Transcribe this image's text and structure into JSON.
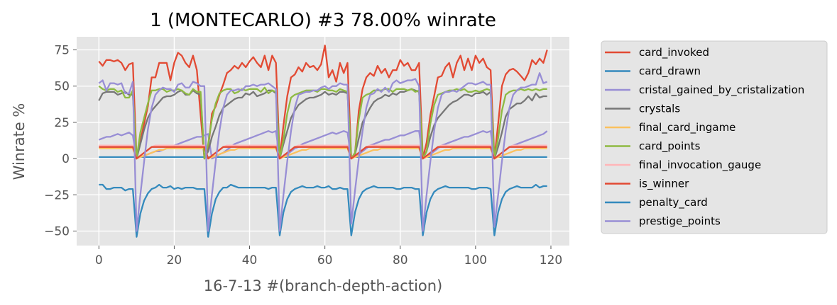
{
  "chart_data": {
    "type": "line",
    "title": "1 (MONTECARLO) #3 78.00% winrate",
    "xlabel": "16-7-13 #(branch-depth-action)",
    "ylabel": "Winrate %",
    "xlim": [
      -5.9,
      124.9
    ],
    "ylim": [
      -60,
      84
    ],
    "xticks": [
      0,
      20,
      40,
      60,
      80,
      100,
      120
    ],
    "yticks": [
      -50,
      -25,
      0,
      25,
      50,
      75
    ],
    "grid": true,
    "legend_position": "outside-right",
    "background": "#E5E5E5",
    "x": {
      "start": 0,
      "end": 119,
      "step": 1
    },
    "series": [
      {
        "name": "card_invoked",
        "color": "#E24A33",
        "values": [
          67,
          64,
          68,
          68,
          67,
          68,
          66,
          61,
          65,
          66,
          0,
          12,
          24,
          36,
          56,
          56,
          66,
          66,
          66,
          54,
          66,
          73,
          71,
          66,
          63,
          71,
          61,
          30,
          0,
          6,
          31,
          36,
          44,
          51,
          59,
          61,
          64,
          62,
          66,
          63,
          67,
          70,
          66,
          63,
          71,
          61,
          71,
          66,
          0,
          23,
          43,
          56,
          58,
          63,
          60,
          66,
          63,
          64,
          61,
          65,
          78,
          56,
          61,
          53,
          66,
          59,
          66,
          0,
          4,
          33,
          48,
          56,
          59,
          57,
          64,
          59,
          62,
          56,
          61,
          61,
          68,
          64,
          66,
          61,
          61,
          66,
          0,
          11,
          30,
          43,
          56,
          57,
          63,
          66,
          56,
          66,
          71,
          61,
          69,
          61,
          71,
          66,
          69,
          63,
          61,
          0,
          24,
          50,
          58,
          61,
          62,
          60,
          57,
          54,
          59,
          68,
          65,
          69,
          66,
          75
        ]
      },
      {
        "name": "card_drawn",
        "color": "#348ABD",
        "values": [
          1,
          1,
          1,
          1,
          1,
          1,
          1,
          1,
          1,
          1,
          1,
          1,
          1,
          1,
          1,
          1,
          1,
          1,
          1,
          1,
          1,
          1,
          1,
          1,
          1,
          1,
          1,
          1,
          1,
          1,
          1,
          1,
          1,
          1,
          1,
          1,
          1,
          1,
          1,
          1,
          1,
          1,
          1,
          1,
          1,
          1,
          1,
          1,
          1,
          1,
          1,
          1,
          1,
          1,
          1,
          1,
          1,
          1,
          1,
          1,
          1,
          1,
          1,
          1,
          1,
          1,
          1,
          1,
          1,
          1,
          1,
          1,
          1,
          1,
          1,
          1,
          1,
          1,
          1,
          1,
          1,
          1,
          1,
          1,
          1,
          1,
          1,
          1,
          1,
          1,
          1,
          1,
          1,
          1,
          1,
          1,
          1,
          1,
          1,
          1,
          1,
          1,
          1,
          1,
          1,
          1,
          1,
          1,
          1,
          1,
          1,
          1,
          1,
          1,
          1,
          1,
          1,
          1,
          1,
          1
        ]
      },
      {
        "name": "cristal_gained_by_cristalization",
        "color": "#988ED5",
        "values": [
          13,
          14,
          15,
          15,
          16,
          17,
          16,
          17,
          18,
          16,
          0,
          1,
          2,
          3,
          4,
          5,
          5,
          6,
          7,
          8,
          9,
          10,
          11,
          12,
          13,
          14,
          15,
          15,
          16,
          17,
          0,
          1,
          3,
          4,
          6,
          8,
          10,
          11,
          12,
          13,
          14,
          15,
          16,
          17,
          18,
          19,
          18,
          19,
          0,
          1,
          3,
          5,
          7,
          8,
          10,
          11,
          12,
          13,
          14,
          15,
          16,
          17,
          18,
          17,
          18,
          19,
          18,
          0,
          1,
          3,
          5,
          7,
          9,
          10,
          11,
          12,
          13,
          13,
          14,
          15,
          16,
          16,
          17,
          18,
          19,
          19,
          0,
          1,
          3,
          5,
          7,
          9,
          10,
          11,
          12,
          13,
          14,
          15,
          15,
          16,
          17,
          18,
          19,
          18,
          19,
          0,
          2,
          4,
          6,
          8,
          9,
          10,
          11,
          12,
          13,
          14,
          15,
          16,
          17,
          19
        ]
      },
      {
        "name": "crystals",
        "color": "#777777",
        "values": [
          40,
          45,
          46,
          46,
          46,
          44,
          45,
          46,
          44,
          44,
          0,
          10,
          20,
          28,
          33,
          36,
          39,
          42,
          43,
          43,
          44,
          46,
          47,
          44,
          44,
          47,
          45,
          44,
          0,
          5,
          15,
          22,
          30,
          35,
          37,
          39,
          41,
          42,
          42,
          45,
          44,
          46,
          43,
          44,
          45,
          47,
          47,
          45,
          0,
          10,
          19,
          28,
          33,
          37,
          39,
          41,
          42,
          42,
          43,
          44,
          46,
          44,
          45,
          44,
          46,
          46,
          45,
          0,
          3,
          14,
          25,
          30,
          35,
          39,
          41,
          42,
          44,
          43,
          45,
          44,
          46,
          46,
          47,
          48,
          47,
          46,
          0,
          5,
          15,
          23,
          28,
          31,
          34,
          37,
          39,
          40,
          42,
          44,
          44,
          43,
          45,
          45,
          46,
          44,
          46,
          0,
          8,
          18,
          29,
          34,
          36,
          38,
          38,
          40,
          43,
          40,
          45,
          42,
          43,
          43
        ]
      },
      {
        "name": "final_card_ingame",
        "color": "#FBC15E",
        "values": [
          7,
          7,
          7,
          7,
          7,
          7,
          7,
          7,
          7,
          7,
          0,
          1,
          2,
          3,
          4,
          5,
          6,
          6,
          7,
          7,
          7,
          7,
          7,
          7,
          7,
          7,
          7,
          7,
          7,
          0,
          1,
          2,
          3,
          4,
          5,
          6,
          6,
          7,
          7,
          7,
          7,
          7,
          7,
          7,
          7,
          7,
          7,
          7,
          0,
          1,
          2,
          3,
          4,
          5,
          6,
          6,
          7,
          7,
          7,
          7,
          7,
          7,
          7,
          7,
          7,
          7,
          7,
          0,
          1,
          2,
          3,
          4,
          5,
          6,
          6,
          7,
          7,
          7,
          7,
          7,
          7,
          7,
          7,
          7,
          7,
          7,
          0,
          1,
          2,
          3,
          4,
          5,
          6,
          6,
          7,
          7,
          7,
          7,
          7,
          7,
          7,
          7,
          7,
          7,
          7,
          0,
          1,
          2,
          3,
          4,
          5,
          6,
          6,
          7,
          7,
          7,
          7,
          7,
          7,
          7
        ]
      },
      {
        "name": "card_points",
        "color": "#8EBA42",
        "values": [
          50,
          48,
          47,
          48,
          48,
          46,
          47,
          42,
          42,
          47,
          0,
          18,
          28,
          38,
          47,
          47,
          48,
          48,
          46,
          47,
          47,
          48,
          47,
          45,
          44,
          48,
          46,
          46,
          0,
          10,
          27,
          38,
          45,
          47,
          48,
          48,
          45,
          46,
          48,
          47,
          48,
          48,
          48,
          46,
          49,
          45,
          47,
          46,
          0,
          13,
          31,
          42,
          44,
          45,
          46,
          47,
          47,
          47,
          46,
          48,
          48,
          47,
          47,
          46,
          48,
          47,
          46,
          0,
          4,
          27,
          42,
          44,
          45,
          47,
          47,
          47,
          48,
          48,
          46,
          48,
          48,
          48,
          47,
          48,
          46,
          47,
          0,
          5,
          24,
          37,
          44,
          45,
          46,
          47,
          47,
          48,
          47,
          48,
          46,
          46,
          47,
          46,
          47,
          48,
          47,
          0,
          14,
          33,
          44,
          46,
          47,
          47,
          48,
          47,
          48,
          47,
          48,
          47,
          48,
          48
        ]
      },
      {
        "name": "final_invocation_gauge",
        "color": "#FFB5B8",
        "values": [
          9,
          9,
          9,
          9,
          9,
          9,
          9,
          9,
          9,
          9,
          0,
          2,
          4,
          6,
          8,
          9,
          9,
          9,
          9,
          9,
          9,
          9,
          9,
          9,
          9,
          9,
          9,
          9,
          9,
          0,
          2,
          4,
          6,
          8,
          9,
          9,
          9,
          9,
          9,
          9,
          9,
          9,
          9,
          9,
          9,
          9,
          9,
          9,
          0,
          2,
          4,
          6,
          8,
          9,
          9,
          9,
          9,
          9,
          9,
          9,
          9,
          9,
          9,
          9,
          9,
          9,
          9,
          0,
          2,
          4,
          6,
          8,
          9,
          9,
          9,
          9,
          9,
          9,
          9,
          9,
          9,
          9,
          9,
          9,
          9,
          9,
          0,
          2,
          4,
          6,
          8,
          9,
          9,
          9,
          9,
          9,
          9,
          9,
          9,
          9,
          9,
          9,
          9,
          9,
          9,
          0,
          2,
          4,
          6,
          8,
          9,
          9,
          9,
          9,
          9,
          9,
          9,
          9,
          9,
          9
        ]
      },
      {
        "name": "is_winner",
        "color": "#E24A33",
        "values": [
          8,
          8,
          8,
          8,
          8,
          8,
          8,
          8,
          8,
          8,
          0,
          2,
          4,
          6,
          8,
          8,
          8,
          8,
          8,
          8,
          8,
          8,
          8,
          8,
          8,
          8,
          8,
          8,
          8,
          0,
          2,
          4,
          6,
          8,
          8,
          8,
          8,
          8,
          8,
          8,
          8,
          8,
          8,
          8,
          8,
          8,
          8,
          8,
          0,
          2,
          4,
          6,
          8,
          8,
          8,
          8,
          8,
          8,
          8,
          8,
          8,
          8,
          8,
          8,
          8,
          8,
          8,
          0,
          2,
          4,
          6,
          8,
          8,
          8,
          8,
          8,
          8,
          8,
          8,
          8,
          8,
          8,
          8,
          8,
          8,
          8,
          0,
          2,
          4,
          6,
          8,
          8,
          8,
          8,
          8,
          8,
          8,
          8,
          8,
          8,
          8,
          8,
          8,
          8,
          8,
          0,
          2,
          4,
          6,
          8,
          8,
          8,
          8,
          8,
          8,
          8,
          8,
          8,
          8,
          8
        ]
      },
      {
        "name": "penalty_card",
        "color": "#348ABD",
        "values": [
          -18,
          -18,
          -21,
          -21,
          -20,
          -20,
          -20,
          -22,
          -21,
          -21,
          -54,
          -38,
          -29,
          -24,
          -21,
          -20,
          -18,
          -20,
          -20,
          -19,
          -21,
          -20,
          -21,
          -20,
          -20,
          -20,
          -21,
          -21,
          -21,
          -54,
          -38,
          -28,
          -23,
          -20,
          -20,
          -18,
          -19,
          -20,
          -20,
          -20,
          -20,
          -20,
          -20,
          -20,
          -20,
          -21,
          -20,
          -20,
          -53,
          -37,
          -28,
          -23,
          -21,
          -20,
          -19,
          -20,
          -20,
          -20,
          -19,
          -20,
          -20,
          -19,
          -21,
          -21,
          -20,
          -21,
          -21,
          -53,
          -37,
          -28,
          -23,
          -21,
          -20,
          -19,
          -20,
          -20,
          -20,
          -20,
          -20,
          -21,
          -21,
          -20,
          -20,
          -20,
          -21,
          -21,
          -53,
          -37,
          -28,
          -23,
          -21,
          -20,
          -19,
          -20,
          -20,
          -20,
          -20,
          -20,
          -20,
          -21,
          -21,
          -20,
          -20,
          -20,
          -21,
          -53,
          -37,
          -28,
          -23,
          -21,
          -20,
          -19,
          -20,
          -20,
          -20,
          -20,
          -18,
          -20,
          -19,
          -19
        ]
      },
      {
        "name": "prestige_points",
        "color": "#988ED5",
        "values": [
          52,
          54,
          47,
          52,
          52,
          51,
          52,
          45,
          45,
          53,
          -50,
          -25,
          -2,
          20,
          35,
          44,
          47,
          49,
          48,
          48,
          46,
          51,
          52,
          49,
          49,
          53,
          52,
          50,
          50,
          -50,
          -25,
          -2,
          19,
          35,
          44,
          47,
          47,
          48,
          47,
          50,
          50,
          51,
          50,
          51,
          51,
          52,
          50,
          48,
          -50,
          -25,
          -2,
          19,
          35,
          44,
          45,
          46,
          46,
          47,
          47,
          49,
          50,
          48,
          50,
          50,
          52,
          51,
          51,
          -45,
          -22,
          0,
          19,
          35,
          44,
          45,
          48,
          46,
          49,
          46,
          52,
          54,
          52,
          53,
          54,
          54,
          55,
          50,
          -50,
          -25,
          -2,
          19,
          35,
          44,
          46,
          46,
          47,
          46,
          48,
          50,
          52,
          52,
          51,
          52,
          53,
          51,
          51,
          -47,
          -25,
          -2,
          19,
          35,
          44,
          47,
          49,
          49,
          50,
          51,
          51,
          59,
          52,
          53
        ]
      }
    ]
  }
}
